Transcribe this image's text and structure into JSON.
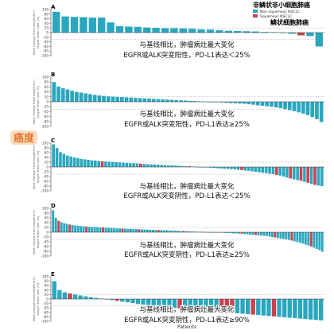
{
  "header": {
    "title_cn_top": "非鳞状非小细胞肺癌",
    "legend": [
      {
        "label": "Non-squamous NSCLC",
        "color": "#2aa7bf"
      },
      {
        "label": "Squamous NSCLC",
        "color": "#c9414f"
      }
    ],
    "title_cn_bottom": "鳞状细胞肺癌",
    "watermark": "癌度",
    "xlabel": "Patients",
    "ylabel_lines": [
      "Best change from baseline in",
      "target lesion size (%)"
    ]
  },
  "colors": {
    "nonsq": "#2aa7bf",
    "sq": "#c9414f",
    "axis": "#444444",
    "zero": "#333333",
    "ref": "#999999",
    "caption_red": "#d02a2a"
  },
  "chart_data": [
    {
      "type": "bar",
      "panel": "A",
      "ylim": [
        -100,
        100
      ],
      "ticks": [
        100,
        80,
        60,
        40,
        20,
        0,
        -20,
        -40,
        -60,
        -80,
        -100
      ],
      "caption_line1": "与基线相比，肿瘤病灶最大变化",
      "caption_line2": "EGFR或ALK突变阳性，PD-L1表达＜25%",
      "values": [
        90,
        70,
        68,
        67,
        65,
        65,
        44,
        28,
        26,
        25,
        22,
        21,
        19,
        19,
        18,
        17,
        14,
        13,
        10,
        8,
        7,
        6,
        5,
        3,
        2,
        -2,
        -5,
        -12,
        -15,
        -60
      ],
      "types": "NNNNNNNNNNNNNNNNNNNNNNNNNNNSNN"
    },
    {
      "type": "bar",
      "panel": "B",
      "ylim": [
        -100,
        100
      ],
      "ticks": [
        100,
        80,
        60,
        40,
        20,
        0,
        -20,
        -40,
        -60,
        -80,
        -100
      ],
      "caption_line1": "与基线相比，肿瘤病灶最大变化",
      "caption_line2": "EGFR或ALK突变阳性，PD-L1表达≥25%",
      "values": [
        80,
        62,
        55,
        50,
        45,
        40,
        37,
        34,
        31,
        28,
        26,
        24,
        22,
        21,
        20,
        19,
        18,
        17,
        16,
        15,
        14,
        13,
        12,
        11,
        10,
        9,
        8,
        7,
        6,
        5,
        4,
        3,
        2,
        1,
        0,
        -1,
        -2,
        -3,
        -4,
        -5,
        -6,
        -7,
        -8,
        -10,
        -12,
        -14,
        -16,
        -18,
        -20,
        -23,
        -26,
        -30,
        -34,
        -38,
        -43,
        -48,
        -54,
        -62,
        -70,
        -82
      ],
      "types": "NNNNNNNNNNNNNNNNNNNNNNNNNNNNNNNNNNNNNNNNNNNNNNNNNNNNNNNNNNNN"
    },
    {
      "type": "bar",
      "panel": "C",
      "ylim": [
        -100,
        100
      ],
      "ticks": [
        100,
        80,
        60,
        40,
        20,
        0,
        -20,
        -40,
        -60,
        -80,
        -100
      ],
      "caption_line1": "与基线相比，肿瘤病灶最大变化",
      "caption_line2": "EGFR或ALK突变阴性，PD-L1表达＜25%",
      "values": [
        95,
        80,
        62,
        55,
        48,
        44,
        40,
        37,
        34,
        32,
        30,
        28,
        27,
        25,
        24,
        23,
        22,
        21,
        20,
        19,
        18,
        17,
        16,
        16,
        15,
        14,
        13,
        12,
        11,
        11,
        10,
        9,
        8,
        7,
        7,
        6,
        5,
        4,
        3,
        3,
        2,
        1,
        0,
        -1,
        -2,
        -3,
        -4,
        -5,
        -6,
        -7,
        -8,
        -9,
        -10,
        -12,
        -13,
        -15,
        -16,
        -18,
        -20,
        -22,
        -24,
        -26,
        -28,
        -30,
        -33,
        -36,
        -40,
        -44,
        -48,
        -52,
        -55,
        -58,
        -62,
        -66,
        -70,
        -75,
        -78,
        -80
      ],
      "types": "NNNNNNNNNNNNNNSNNNNNNNNNNSNNNNNNNNNNNNNSNNNNNNNNNNNNNNSNNNNNNNNNSNNNSNNSNSNSNN"
    },
    {
      "type": "bar",
      "panel": "D",
      "ylim": [
        -100,
        100
      ],
      "ticks": [
        100,
        80,
        60,
        40,
        20,
        0,
        -20,
        -40,
        -60,
        -80,
        -100
      ],
      "caption_line1": "与基线相比，肿瘤病灶最大变化",
      "caption_line2": "EGFR或ALK突变阴性，PD-L1表达≥25%",
      "values": [
        92,
        60,
        48,
        42,
        38,
        35,
        32,
        30,
        28,
        27,
        26,
        25,
        24,
        23,
        22,
        22,
        21,
        20,
        20,
        19,
        18,
        18,
        17,
        16,
        16,
        15,
        15,
        14,
        14,
        13,
        13,
        12,
        12,
        11,
        11,
        10,
        10,
        9,
        9,
        9,
        8,
        8,
        7,
        7,
        6,
        6,
        5,
        5,
        4,
        4,
        3,
        3,
        2,
        2,
        1,
        1,
        0,
        0,
        -1,
        -1,
        -2,
        -2,
        -3,
        -3,
        -4,
        -5,
        -5,
        -6,
        -7,
        -8,
        -9,
        -10,
        -11,
        -12,
        -13,
        -14,
        -15,
        -16,
        -18,
        -20,
        -22,
        -24,
        -26,
        -28,
        -30,
        -32,
        -35,
        -38,
        -41,
        -44,
        -48,
        -52,
        -56,
        -60,
        -65,
        -70,
        -75,
        -82
      ],
      "types": "NNSNNNSNNNNNSNNNNNSNNNNNNSNNNNNSNNNNNNSNNNNNNNNSNNNNNNSNNNNNNSNNNNNNSNNNNSNNNNNNSNNNNNSNNNNNNSNNNN"
    },
    {
      "type": "bar",
      "panel": "E",
      "ylim": [
        -100,
        100
      ],
      "ticks": [
        100,
        80,
        60,
        40,
        20,
        0,
        -20,
        -40,
        -60,
        -80,
        -100
      ],
      "caption_line1": "与基线相比，肿瘤病灶最大变化",
      "caption_line2": "EGFR或ALK突变阴性，PD-L1表达≥90%",
      "values": [
        80,
        40,
        30,
        25,
        20,
        16,
        12,
        8,
        5,
        2,
        -2,
        -5,
        -8,
        -12,
        -15,
        -18,
        -22,
        -25,
        -28,
        -30,
        -33,
        -35,
        -38,
        -40,
        -42,
        -44,
        -46,
        -48,
        -50,
        -52,
        -54,
        -56,
        -58,
        -60,
        -62,
        -64,
        -66,
        -68,
        -70,
        -72,
        -74,
        -76,
        -78,
        -80,
        -82,
        -84,
        -86,
        -88,
        -90,
        -92,
        -94,
        -96
      ],
      "types": "NNNSNNNNNNNNSNNNNNNNNNNNSNNNNNNNSSSNNNSNNNSNNNNNNNNN"
    }
  ]
}
